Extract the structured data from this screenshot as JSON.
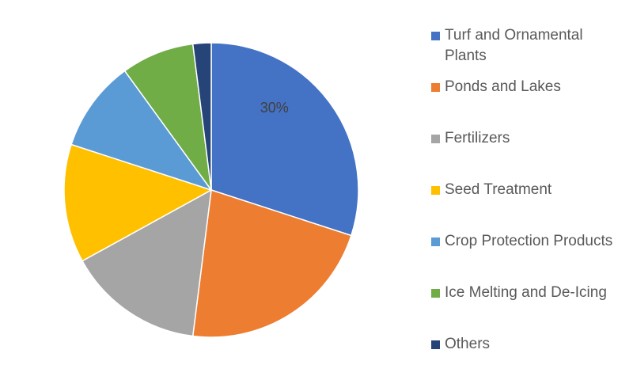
{
  "chart_data": {
    "type": "pie",
    "categories": [
      "Turf and Ornamental Plants",
      "Ponds and Lakes",
      "Fertilizers",
      "Seed Treatment",
      "Crop Protection Products",
      "Ice Melting and De-Icing",
      "Others"
    ],
    "values": [
      30,
      22,
      15,
      13,
      10,
      8,
      2
    ],
    "value_labels": [
      "30%",
      null,
      null,
      null,
      null,
      null,
      null
    ],
    "colors": [
      "#4472c4",
      "#ed7d31",
      "#a5a5a5",
      "#ffc000",
      "#5b9bd5",
      "#70ad47",
      "#264478"
    ],
    "legend": "right"
  }
}
